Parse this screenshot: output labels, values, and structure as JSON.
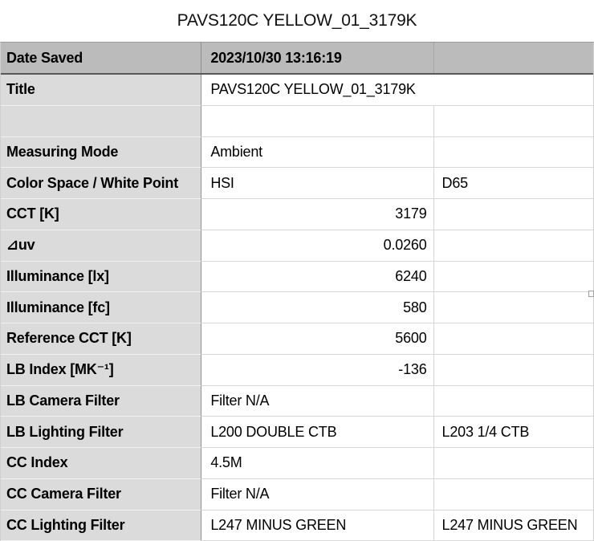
{
  "page_title": "PAVS120C YELLOW_01_3179K",
  "colors": {
    "header-bg": "#bbbbbb",
    "label-bg": "#dbdbdb",
    "header-border": "#58585a",
    "header-divider": "#a6a6a6",
    "grid-light": "#d7d7d7",
    "grid-dark": "#8f8f8f",
    "grid-top": "#9a9a9a",
    "grid-outer": "#cfcfcf",
    "label-sep": "#f1f1f1"
  },
  "table": {
    "rows": [
      {
        "label": "Date Saved",
        "value": "2023/10/30 13:16:19",
        "value2": ""
      },
      {
        "label": "Title",
        "value": "PAVS120C YELLOW_01_3179K"
      },
      {
        "label": "",
        "value": "",
        "value2": ""
      },
      {
        "label": "Measuring Mode",
        "value": "Ambient",
        "value2": ""
      },
      {
        "label": "Color Space / White Point",
        "value": "HSI",
        "value2": "D65"
      },
      {
        "label": "CCT [K]",
        "value": "3179",
        "value2": ""
      },
      {
        "label": "⊿uv",
        "value": "0.0260",
        "value2": ""
      },
      {
        "label": "Illuminance [lx]",
        "value": "6240",
        "value2": ""
      },
      {
        "label": "Illuminance [fc]",
        "value": "580",
        "value2": ""
      },
      {
        "label": "Reference CCT [K]",
        "value": "5600",
        "value2": ""
      },
      {
        "label": "LB Index [MK⁻¹]",
        "value": "-136",
        "value2": ""
      },
      {
        "label": "LB Camera Filter",
        "value": "Filter N/A",
        "value2": ""
      },
      {
        "label": "LB Lighting Filter",
        "value": "L200 DOUBLE CTB",
        "value2": "L203 1/4 CTB"
      },
      {
        "label": "CC Index",
        "value": "4.5M",
        "value2": ""
      },
      {
        "label": "CC Camera Filter",
        "value": "Filter N/A",
        "value2": ""
      },
      {
        "label": "CC Lighting Filter",
        "value": "L247 MINUS GREEN",
        "value2": "L247 MINUS GREEN"
      }
    ]
  }
}
